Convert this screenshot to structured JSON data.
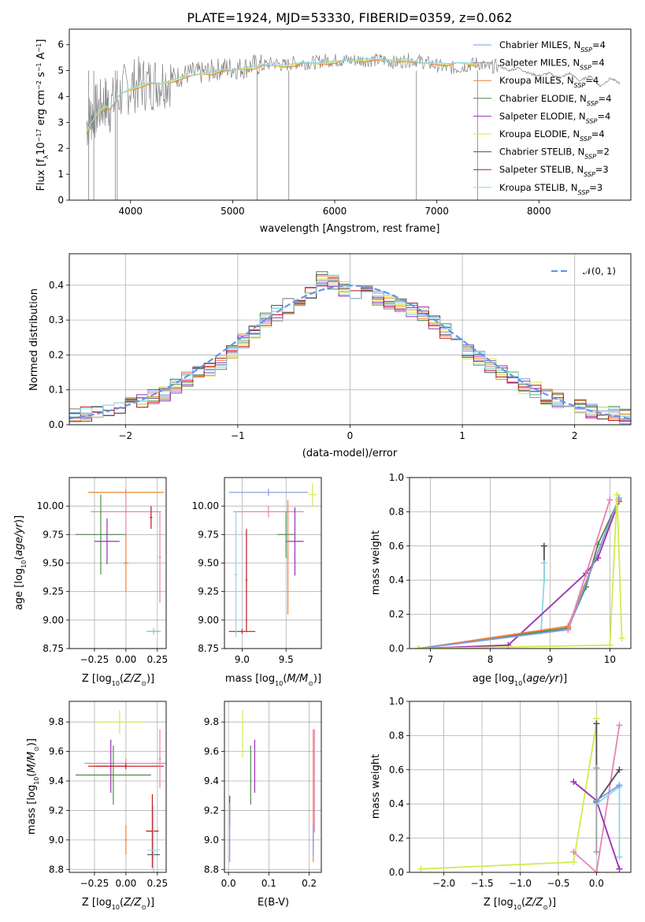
{
  "figure": {
    "title": "PLATE=1924, MJD=53330, FIBERID=0359, z=0.062"
  },
  "colors": {
    "spectrum": "#808080",
    "normal": "#6495ed",
    "grid": "#b0b0b0"
  },
  "models": [
    {
      "name": "Chabrier MILES, N_SSP=4",
      "label_prefix": "Chabrier MILES, N",
      "label_sub": "SSP",
      "label_suffix": "=4",
      "color": "#7d9ae8"
    },
    {
      "name": "Salpeter MILES, N_SSP=4",
      "label_prefix": "Salpeter MILES, N",
      "label_sub": "SSP",
      "label_suffix": "=4",
      "color": "#9c9c9c"
    },
    {
      "name": "Kroupa MILES, N_SSP=4",
      "label_prefix": "Kroupa MILES, N",
      "label_sub": "SSP",
      "label_suffix": "=4",
      "color": "#ef7f3a"
    },
    {
      "name": "Chabrier ELODIE, N_SSP=4",
      "label_prefix": "Chabrier ELODIE, N",
      "label_sub": "SSP",
      "label_suffix": "=4",
      "color": "#4c8c4a"
    },
    {
      "name": "Salpeter ELODIE, N_SSP=4",
      "label_prefix": "Salpeter ELODIE, N",
      "label_sub": "SSP",
      "label_suffix": "=4",
      "color": "#9a2fb6"
    },
    {
      "name": "Kroupa ELODIE, N_SSP=4",
      "label_prefix": "Kroupa ELODIE, N",
      "label_sub": "SSP",
      "label_suffix": "=4",
      "color": "#d4ea4c"
    },
    {
      "name": "Chabrier STELIB, N_SSP=2",
      "label_prefix": "Chabrier STELIB, N",
      "label_sub": "SSP",
      "label_suffix": "=2",
      "color": "#505050"
    },
    {
      "name": "Salpeter STELIB, N_SSP=3",
      "label_prefix": "Salpeter STELIB, N",
      "label_sub": "SSP",
      "label_suffix": "=3",
      "color": "#c01818"
    },
    {
      "name": "Kroupa STELIB, N_SSP=3",
      "label_prefix": "Kroupa STELIB, N",
      "label_sub": "SSP",
      "label_suffix": "=3",
      "color": "#8fd6e6"
    }
  ],
  "chart_data": [
    {
      "type": "line",
      "id": "spectrum",
      "title": "PLATE=1924, MJD=53330, FIBERID=0359, z=0.062",
      "xlabel": "wavelength [Angstrom, rest frame]",
      "ylabel": "Flux [f_λ 10^-17 erg cm^-2 s^-1 A^-1]",
      "xlim": [
        3400,
        8900
      ],
      "ylim": [
        0,
        6.6
      ],
      "xticks": [
        4000,
        5000,
        6000,
        7000,
        8000
      ],
      "yticks": [
        0,
        1,
        2,
        3,
        4,
        5,
        6
      ],
      "grid": false,
      "legend": "upper right",
      "observed": {
        "x": [
          3570,
          3620,
          3680,
          3750,
          3800,
          3900,
          4000,
          4100,
          4200,
          4300,
          4400,
          4500,
          4600,
          4700,
          4800,
          4900,
          5000,
          5100,
          5200,
          5300,
          5400,
          5500,
          5600,
          5700,
          5800,
          5900,
          6000,
          6100,
          6200,
          6300,
          6400,
          6500,
          6600,
          6700,
          6800,
          6900,
          7000,
          7100,
          7200,
          7300,
          7400,
          7500,
          7600,
          7700,
          7800,
          7900,
          8000,
          8100,
          8200,
          8300,
          8400,
          8500,
          8600,
          8700,
          8800
        ],
        "y": [
          2.9,
          3.3,
          3.5,
          3.8,
          3.6,
          4.1,
          4.4,
          4.5,
          4.5,
          4.6,
          4.7,
          4.8,
          4.9,
          4.9,
          5.0,
          5.1,
          5.1,
          5.1,
          5.2,
          5.2,
          5.3,
          5.2,
          5.3,
          5.3,
          5.3,
          5.4,
          5.4,
          5.4,
          5.4,
          5.4,
          5.4,
          5.4,
          5.3,
          5.4,
          5.4,
          5.3,
          5.2,
          5.1,
          5.1,
          5.2,
          5.3,
          5.1,
          5.2,
          5.0,
          5.1,
          4.9,
          4.8,
          4.9,
          4.7,
          4.9,
          4.6,
          4.8,
          4.4,
          4.7,
          4.5
        ]
      },
      "model": {
        "x": [
          3570,
          3620,
          3680,
          3750,
          3800,
          3900,
          4000,
          4100,
          4200,
          4300,
          4400,
          4500,
          4600,
          4700,
          4800,
          4900,
          5000,
          5100,
          5200,
          5300,
          5400,
          5500,
          5600,
          5700,
          5800,
          5900,
          6000,
          6100,
          6200,
          6300,
          6400,
          6500,
          6600,
          6700,
          6800,
          6900,
          7000,
          7100,
          7200,
          7300,
          7400
        ],
        "y": [
          2.6,
          3.0,
          3.4,
          3.6,
          3.5,
          4.1,
          4.3,
          4.4,
          4.5,
          4.5,
          4.6,
          4.7,
          4.8,
          4.9,
          4.9,
          5.0,
          5.0,
          5.1,
          5.1,
          5.2,
          5.2,
          5.2,
          5.2,
          5.3,
          5.3,
          5.3,
          5.3,
          5.4,
          5.4,
          5.4,
          5.4,
          5.4,
          5.4,
          5.4,
          5.3,
          5.3,
          5.3,
          5.2,
          5.3,
          5.3,
          5.2
        ]
      }
    },
    {
      "type": "line",
      "id": "residuals",
      "xlabel": "(data-model)/error",
      "ylabel": "Normed distribution",
      "xlim": [
        -2.5,
        2.5
      ],
      "ylim": [
        0,
        0.49
      ],
      "xticks": [
        -2,
        -1,
        0,
        1,
        2
      ],
      "yticks": [
        0.0,
        0.1,
        0.2,
        0.3,
        0.4
      ],
      "grid": true,
      "legend": "upper right",
      "legend_label": "N(0,1)",
      "hist_x": [
        -2.5,
        -2.4,
        -2.3,
        -2.2,
        -2.1,
        -2.0,
        -1.9,
        -1.8,
        -1.7,
        -1.6,
        -1.5,
        -1.4,
        -1.3,
        -1.2,
        -1.1,
        -1.0,
        -0.9,
        -0.8,
        -0.7,
        -0.6,
        -0.5,
        -0.4,
        -0.3,
        -0.2,
        -0.1,
        0.0,
        0.1,
        0.2,
        0.3,
        0.4,
        0.5,
        0.6,
        0.7,
        0.8,
        0.9,
        1.0,
        1.1,
        1.2,
        1.3,
        1.4,
        1.5,
        1.6,
        1.7,
        1.8,
        1.9,
        2.0,
        2.1,
        2.2,
        2.3,
        2.4
      ],
      "hist_y": [
        0.025,
        0.03,
        0.035,
        0.04,
        0.05,
        0.06,
        0.07,
        0.08,
        0.09,
        0.11,
        0.13,
        0.15,
        0.16,
        0.18,
        0.21,
        0.24,
        0.27,
        0.3,
        0.32,
        0.34,
        0.36,
        0.38,
        0.42,
        0.41,
        0.39,
        0.38,
        0.38,
        0.36,
        0.35,
        0.34,
        0.33,
        0.32,
        0.29,
        0.27,
        0.24,
        0.21,
        0.19,
        0.17,
        0.15,
        0.13,
        0.11,
        0.1,
        0.08,
        0.07,
        0.06,
        0.05,
        0.04,
        0.035,
        0.03,
        0.025
      ]
    },
    {
      "type": "scatter",
      "id": "age-vs-Z",
      "xlabel": "Z [log10(Z/Z_sun)]",
      "ylabel": "age [log10(age/yr)]",
      "xlim": [
        -0.45,
        0.32
      ],
      "ylim": [
        8.75,
        10.25
      ],
      "xticks": [
        -0.25,
        0.0,
        0.25
      ],
      "yticks": [
        8.75,
        9.0,
        9.25,
        9.5,
        9.75,
        10.0
      ],
      "grid": true,
      "points": [
        {
          "x": 0.0,
          "y": 10.12,
          "xerr": 0.3,
          "yerr": 0.04,
          "color": "#d4ea4c"
        },
        {
          "x": 0.0,
          "y": 10.12,
          "xerr": 0.3,
          "yerr": 0.03,
          "color": "#ef7f3a"
        },
        {
          "x": 0.0,
          "y": 9.95,
          "xerr": 0.28,
          "yerr": 0.2,
          "color": "#e882b8"
        },
        {
          "x": -0.2,
          "y": 9.75,
          "xerr": 0.2,
          "yerr": 0.35,
          "color": "#4c8c4a"
        },
        {
          "x": -0.15,
          "y": 9.69,
          "xerr": 0.1,
          "yerr": 0.2,
          "color": "#9a2fb6"
        },
        {
          "x": 0.0,
          "y": 9.5,
          "xerr": 0.02,
          "yerr": 0.25,
          "color": "#ef7f3a"
        },
        {
          "x": 0.2,
          "y": 9.9,
          "xerr": 0.01,
          "yerr": 0.1,
          "color": "#c01818"
        },
        {
          "x": 0.22,
          "y": 8.9,
          "xerr": 0.05,
          "yerr": 0.02,
          "color": "#505050"
        },
        {
          "x": 0.22,
          "y": 8.9,
          "xerr": 0.06,
          "yerr": 0.03,
          "color": "#8fd6e6"
        },
        {
          "x": 0.27,
          "y": 9.55,
          "xerr": 0.01,
          "yerr": 0.4,
          "color": "#e882b8"
        }
      ]
    },
    {
      "type": "scatter",
      "id": "age-vs-mass",
      "xlabel": "mass [log10(M/M_sun)]",
      "ylabel": "",
      "xlim": [
        8.8,
        9.9
      ],
      "ylim": [
        8.75,
        10.25
      ],
      "xticks": [
        9.0,
        9.5
      ],
      "yticks": [
        8.75,
        9.0,
        9.25,
        9.5,
        9.75,
        10.0
      ],
      "grid": true,
      "points": [
        {
          "x": 9.3,
          "y": 10.12,
          "xerr": 0.45,
          "yerr": 0.03,
          "color": "#7d9ae8"
        },
        {
          "x": 9.8,
          "y": 10.1,
          "xerr": 0.05,
          "yerr": 0.1,
          "color": "#d4ea4c"
        },
        {
          "x": 9.3,
          "y": 9.95,
          "xerr": 0.4,
          "yerr": 0.05,
          "color": "#e882b8"
        },
        {
          "x": 9.5,
          "y": 9.75,
          "xerr": 0.1,
          "yerr": 0.2,
          "color": "#4c8c4a"
        },
        {
          "x": 9.6,
          "y": 9.69,
          "xerr": 0.1,
          "yerr": 0.3,
          "color": "#9a2fb6"
        },
        {
          "x": 9.52,
          "y": 9.55,
          "xerr": 0.01,
          "yerr": 0.5,
          "color": "#ef7f3a"
        },
        {
          "x": 9.05,
          "y": 9.35,
          "xerr": 0.01,
          "yerr": 0.45,
          "color": "#c01818"
        },
        {
          "x": 9.0,
          "y": 8.9,
          "xerr": 0.15,
          "yerr": 0.02,
          "color": "#c01818"
        },
        {
          "x": 8.93,
          "y": 9.4,
          "xerr": 0.02,
          "yerr": 0.55,
          "color": "#8fd6e6"
        }
      ]
    },
    {
      "type": "line",
      "id": "mass-weight-vs-age",
      "xlabel": "age [log10(age/yr)]",
      "ylabel": "mass weight",
      "xlim": [
        6.65,
        10.35
      ],
      "ylim": [
        0.0,
        1.0
      ],
      "xticks": [
        7,
        8,
        9,
        10
      ],
      "yticks": [
        0.0,
        0.2,
        0.4,
        0.6,
        0.8,
        1.0
      ],
      "grid": true,
      "series": [
        {
          "color": "#505050",
          "x": [
            8.9,
            8.9
          ],
          "y": [
            0.4,
            0.6
          ]
        },
        {
          "color": "#8fd6e6",
          "x": [
            8.85,
            8.9,
            8.9
          ],
          "y": [
            0.1,
            0.4,
            0.5
          ]
        },
        {
          "color": "#9a2fb6",
          "x": [
            6.8,
            8.3,
            9.6,
            9.8,
            10.15
          ],
          "y": [
            0.0,
            0.02,
            0.44,
            0.53,
            0.86
          ]
        },
        {
          "color": "#4c8c4a",
          "x": [
            6.8,
            9.3,
            9.6,
            9.8,
            10.15
          ],
          "y": [
            0.0,
            0.12,
            0.36,
            0.61,
            0.87
          ]
        },
        {
          "color": "#ef7f3a",
          "x": [
            6.8,
            9.3,
            10.15
          ],
          "y": [
            0.0,
            0.13,
            0.87
          ]
        },
        {
          "color": "#7d9ae8",
          "x": [
            6.8,
            9.3,
            10.15
          ],
          "y": [
            0.0,
            0.11,
            0.88
          ]
        },
        {
          "color": "#e882b8",
          "x": [
            9.3,
            10.0
          ],
          "y": [
            0.11,
            0.87
          ]
        },
        {
          "color": "#d4ea4c",
          "x": [
            6.8,
            10.0,
            10.12,
            10.2
          ],
          "y": [
            0.0,
            0.02,
            0.9,
            0.06
          ]
        }
      ]
    },
    {
      "type": "scatter",
      "id": "mass-vs-Z",
      "xlabel": "Z [log10(Z/Z_sun)]",
      "ylabel": "mass [log10(M/M_sun)]",
      "xlim": [
        -0.45,
        0.32
      ],
      "ylim": [
        8.78,
        9.94
      ],
      "xticks": [
        -0.25,
        0.0,
        0.25
      ],
      "yticks": [
        8.8,
        9.0,
        9.2,
        9.4,
        9.6,
        9.8
      ],
      "grid": true,
      "points": [
        {
          "x": -0.05,
          "y": 9.8,
          "xerr": 0.2,
          "yerr": 0.08,
          "color": "#d4ea4c"
        },
        {
          "x": 0.0,
          "y": 9.52,
          "xerr": 0.32,
          "yerr": 0.03,
          "color": "#ef7f3a"
        },
        {
          "x": 0.0,
          "y": 9.52,
          "xerr": 0.33,
          "yerr": 0.02,
          "color": "#e882b8"
        },
        {
          "x": -0.12,
          "y": 9.5,
          "xerr": 0.12,
          "yerr": 0.18,
          "color": "#9a2fb6"
        },
        {
          "x": 0.0,
          "y": 9.5,
          "xerr": 0.3,
          "yerr": 0.02,
          "color": "#c01818"
        },
        {
          "x": -0.1,
          "y": 9.44,
          "xerr": 0.3,
          "yerr": 0.2,
          "color": "#4c8c4a"
        },
        {
          "x": 0.0,
          "y": 9.0,
          "xerr": 0.01,
          "yerr": 0.1,
          "color": "#ef7f3a"
        },
        {
          "x": 0.21,
          "y": 9.06,
          "xerr": 0.05,
          "yerr": 0.25,
          "color": "#c01818"
        },
        {
          "x": 0.22,
          "y": 8.9,
          "xerr": 0.05,
          "yerr": 0.02,
          "color": "#505050"
        },
        {
          "x": 0.22,
          "y": 8.93,
          "xerr": 0.05,
          "yerr": 0.3,
          "color": "#8fd6e6"
        },
        {
          "x": 0.27,
          "y": 9.55,
          "xerr": 0.01,
          "yerr": 0.2,
          "color": "#e882b8"
        }
      ]
    },
    {
      "type": "scatter",
      "id": "mass-vs-ebv",
      "xlabel": "E(B-V)",
      "ylabel": "",
      "xlim": [
        -0.01,
        0.23
      ],
      "ylim": [
        8.78,
        9.94
      ],
      "xticks": [
        0.0,
        0.1,
        0.2
      ],
      "yticks": [
        8.8,
        9.0,
        9.2,
        9.4,
        9.6,
        9.8
      ],
      "grid": true,
      "points": [
        {
          "x": 0.035,
          "y": 9.72,
          "xerr": 0.0,
          "yerr": 0.16,
          "color": "#d4ea4c"
        },
        {
          "x": 0.055,
          "y": 9.44,
          "xerr": 0.0,
          "yerr": 0.2,
          "color": "#4c8c4a"
        },
        {
          "x": 0.065,
          "y": 9.5,
          "xerr": 0.0,
          "yerr": 0.18,
          "color": "#9a2fb6"
        },
        {
          "x": 0.003,
          "y": 9.2,
          "xerr": 0.0,
          "yerr": 0.1,
          "color": "#c01818"
        },
        {
          "x": 0.003,
          "y": 9.05,
          "xerr": 0.0,
          "yerr": 0.2,
          "color": "#7d9ae8"
        },
        {
          "x": 0.21,
          "y": 9.3,
          "xerr": 0.0,
          "yerr": 0.45,
          "color": "#ef7f3a"
        },
        {
          "x": 0.213,
          "y": 9.4,
          "xerr": 0.0,
          "yerr": 0.35,
          "color": "#e882b8"
        },
        {
          "x": 0.21,
          "y": 9.0,
          "xerr": 0.0,
          "yerr": 0.1,
          "color": "#7d9ae8"
        }
      ]
    },
    {
      "type": "line",
      "id": "mass-weight-vs-Z",
      "xlabel": "Z [log10(Z/Z_sun)]",
      "ylabel": "mass weight",
      "xlim": [
        -2.45,
        0.45
      ],
      "ylim": [
        0.0,
        1.0
      ],
      "xticks": [
        -2.0,
        -1.5,
        -1.0,
        -0.5,
        0.0
      ],
      "yticks": [
        0.0,
        0.2,
        0.4,
        0.6,
        0.8,
        1.0
      ],
      "grid": true,
      "series": [
        {
          "color": "#d4ea4c",
          "x": [
            -2.3,
            -0.3,
            0.0,
            0.0
          ],
          "y": [
            0.02,
            0.06,
            0.87,
            0.9
          ]
        },
        {
          "color": "#e882b8",
          "x": [
            -0.3,
            0.0,
            0.3
          ],
          "y": [
            0.12,
            0.0,
            0.86
          ]
        },
        {
          "color": "#9a2fb6",
          "x": [
            -0.3,
            0.0,
            0.3
          ],
          "y": [
            0.53,
            0.42,
            0.02
          ]
        },
        {
          "color": "#505050",
          "x": [
            0.0,
            0.0,
            0.3
          ],
          "y": [
            0.87,
            0.41,
            0.6
          ]
        },
        {
          "color": "#8fd6e6",
          "x": [
            0.0,
            0.3,
            0.3
          ],
          "y": [
            0.4,
            0.5,
            0.09
          ]
        },
        {
          "color": "#7d9ae8",
          "x": [
            0.0,
            0.3
          ],
          "y": [
            0.42,
            0.51
          ]
        },
        {
          "color": "#9c9c9c",
          "x": [
            0.0,
            0.0
          ],
          "y": [
            0.12,
            0.61
          ]
        }
      ]
    }
  ]
}
